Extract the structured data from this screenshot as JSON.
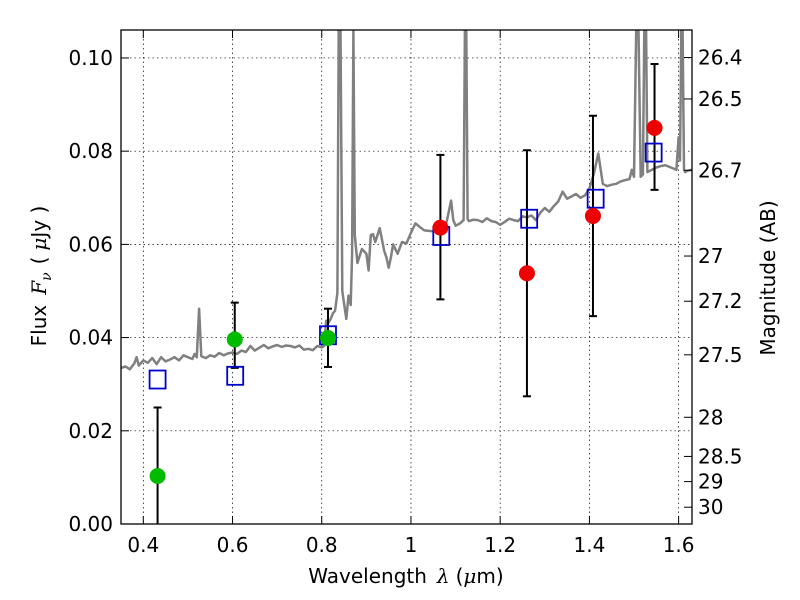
{
  "chart_data": {
    "type": "scatter",
    "title": "",
    "xlabel": "Wavelength",
    "xlabel_symbol": "λ",
    "xlabel_unit_open": "(",
    "xlabel_unit_mu": "μ",
    "xlabel_unit_rest": "m)",
    "ylabel": "Flux",
    "ylabel_symbol": "F",
    "ylabel_symbol_sub": "ν",
    "ylabel_unit_open": "(",
    "ylabel_unit_mu": "μ",
    "ylabel_unit_rest": "Jy )",
    "y2label": "Magnitude (AB)",
    "xlim": [
      0.35,
      1.63
    ],
    "ylim": [
      0.0,
      0.106
    ],
    "grid": true,
    "legend": "none",
    "x_ticks": [
      {
        "value": 0.4,
        "label": "0.4"
      },
      {
        "value": 0.6,
        "label": "0.6"
      },
      {
        "value": 0.8,
        "label": "0.8"
      },
      {
        "value": 1.0,
        "label": "1"
      },
      {
        "value": 1.2,
        "label": "1.2"
      },
      {
        "value": 1.4,
        "label": "1.4"
      },
      {
        "value": 1.6,
        "label": "1.6"
      }
    ],
    "y_ticks": [
      {
        "value": 0.0,
        "label": "0.00"
      },
      {
        "value": 0.02,
        "label": "0.02"
      },
      {
        "value": 0.04,
        "label": "0.04"
      },
      {
        "value": 0.06,
        "label": "0.06"
      },
      {
        "value": 0.08,
        "label": "0.08"
      },
      {
        "value": 0.1,
        "label": "0.10"
      }
    ],
    "y2_ticks": [
      {
        "flux": 0.1001,
        "label": "26.4"
      },
      {
        "flux": 0.0912,
        "label": "26.5"
      },
      {
        "flux": 0.0759,
        "label": "26.7"
      },
      {
        "flux": 0.0575,
        "label": "27"
      },
      {
        "flux": 0.0478,
        "label": "27.2"
      },
      {
        "flux": 0.0363,
        "label": "27.5"
      },
      {
        "flux": 0.0229,
        "label": "28"
      },
      {
        "flux": 0.0145,
        "label": "28.5"
      },
      {
        "flux": 0.0091,
        "label": "29"
      },
      {
        "flux": 0.0036,
        "label": "30"
      }
    ],
    "series": [
      {
        "kind": "spectrum",
        "color": "#808080",
        "points": [
          [
            0.35,
            0.0335
          ],
          [
            0.36,
            0.0338
          ],
          [
            0.37,
            0.0332
          ],
          [
            0.38,
            0.0345
          ],
          [
            0.385,
            0.0358
          ],
          [
            0.39,
            0.034
          ],
          [
            0.4,
            0.0351
          ],
          [
            0.41,
            0.0346
          ],
          [
            0.42,
            0.0356
          ],
          [
            0.43,
            0.0343
          ],
          [
            0.44,
            0.0358
          ],
          [
            0.45,
            0.0349
          ],
          [
            0.46,
            0.0353
          ],
          [
            0.47,
            0.0358
          ],
          [
            0.48,
            0.0351
          ],
          [
            0.49,
            0.0362
          ],
          [
            0.5,
            0.0358
          ],
          [
            0.51,
            0.0354
          ],
          [
            0.515,
            0.0365
          ],
          [
            0.52,
            0.0358
          ],
          [
            0.525,
            0.0462
          ],
          [
            0.53,
            0.036
          ],
          [
            0.54,
            0.0356
          ],
          [
            0.55,
            0.0362
          ],
          [
            0.56,
            0.0359
          ],
          [
            0.57,
            0.0367
          ],
          [
            0.58,
            0.0362
          ],
          [
            0.59,
            0.0366
          ],
          [
            0.6,
            0.0368
          ],
          [
            0.61,
            0.0365
          ],
          [
            0.62,
            0.0372
          ],
          [
            0.63,
            0.0369
          ],
          [
            0.64,
            0.0382
          ],
          [
            0.65,
            0.0372
          ],
          [
            0.66,
            0.0378
          ],
          [
            0.67,
            0.0384
          ],
          [
            0.68,
            0.0377
          ],
          [
            0.69,
            0.0381
          ],
          [
            0.7,
            0.0384
          ],
          [
            0.71,
            0.038
          ],
          [
            0.72,
            0.0383
          ],
          [
            0.73,
            0.0382
          ],
          [
            0.74,
            0.0379
          ],
          [
            0.75,
            0.0383
          ],
          [
            0.76,
            0.0374
          ],
          [
            0.77,
            0.0376
          ],
          [
            0.78,
            0.0373
          ],
          [
            0.79,
            0.0382
          ],
          [
            0.8,
            0.0379
          ],
          [
            0.805,
            0.0382
          ],
          [
            0.81,
            0.0436
          ],
          [
            0.815,
            0.0432
          ],
          [
            0.82,
            0.044
          ],
          [
            0.825,
            0.0452
          ],
          [
            0.83,
            0.0458
          ],
          [
            0.835,
            0.0496
          ],
          [
            0.838,
            0.106
          ],
          [
            0.842,
            0.106
          ],
          [
            0.846,
            0.05
          ],
          [
            0.85,
            0.0474
          ],
          [
            0.855,
            0.044
          ],
          [
            0.86,
            0.049
          ],
          [
            0.865,
            0.047
          ],
          [
            0.868,
            0.058
          ],
          [
            0.871,
            0.106
          ],
          [
            0.874,
            0.062
          ],
          [
            0.877,
            0.059
          ],
          [
            0.88,
            0.056
          ],
          [
            0.89,
            0.059
          ],
          [
            0.9,
            0.058
          ],
          [
            0.905,
            0.0544
          ],
          [
            0.91,
            0.062
          ],
          [
            0.915,
            0.0622
          ],
          [
            0.92,
            0.0605
          ],
          [
            0.93,
            0.0635
          ],
          [
            0.94,
            0.0586
          ],
          [
            0.945,
            0.0572
          ],
          [
            0.95,
            0.055
          ],
          [
            0.955,
            0.0572
          ],
          [
            0.96,
            0.06
          ],
          [
            0.965,
            0.059
          ],
          [
            0.97,
            0.058
          ],
          [
            0.98,
            0.0605
          ],
          [
            0.99,
            0.0602
          ],
          [
            1.0,
            0.0625
          ],
          [
            1.01,
            0.0645
          ],
          [
            1.02,
            0.0637
          ],
          [
            1.03,
            0.063
          ],
          [
            1.04,
            0.0629
          ],
          [
            1.05,
            0.0628
          ],
          [
            1.06,
            0.064
          ],
          [
            1.065,
            0.0625
          ],
          [
            1.07,
            0.0632
          ],
          [
            1.08,
            0.0648
          ],
          [
            1.09,
            0.0694
          ],
          [
            1.095,
            0.0652
          ],
          [
            1.1,
            0.064
          ],
          [
            1.11,
            0.0645
          ],
          [
            1.118,
            0.0652
          ],
          [
            1.121,
            0.106
          ],
          [
            1.124,
            0.106
          ],
          [
            1.127,
            0.0654
          ],
          [
            1.13,
            0.065
          ],
          [
            1.14,
            0.0653
          ],
          [
            1.15,
            0.0652
          ],
          [
            1.16,
            0.0648
          ],
          [
            1.17,
            0.0656
          ],
          [
            1.18,
            0.065
          ],
          [
            1.19,
            0.0648
          ],
          [
            1.2,
            0.0642
          ],
          [
            1.21,
            0.0648
          ],
          [
            1.22,
            0.0655
          ],
          [
            1.23,
            0.0652
          ],
          [
            1.24,
            0.065
          ],
          [
            1.25,
            0.066
          ],
          [
            1.26,
            0.0658
          ],
          [
            1.27,
            0.0662
          ],
          [
            1.28,
            0.0652
          ],
          [
            1.29,
            0.0668
          ],
          [
            1.3,
            0.0678
          ],
          [
            1.31,
            0.067
          ],
          [
            1.32,
            0.0682
          ],
          [
            1.33,
            0.0692
          ],
          [
            1.34,
            0.0713
          ],
          [
            1.35,
            0.0698
          ],
          [
            1.36,
            0.0703
          ],
          [
            1.37,
            0.0708
          ],
          [
            1.38,
            0.07
          ],
          [
            1.39,
            0.0705
          ],
          [
            1.4,
            0.072
          ],
          [
            1.41,
            0.0752
          ],
          [
            1.42,
            0.0795
          ],
          [
            1.43,
            0.073
          ],
          [
            1.44,
            0.0725
          ],
          [
            1.45,
            0.0728
          ],
          [
            1.46,
            0.073
          ],
          [
            1.47,
            0.0735
          ],
          [
            1.48,
            0.0738
          ],
          [
            1.49,
            0.074
          ],
          [
            1.495,
            0.076
          ],
          [
            1.5,
            0.0745
          ],
          [
            1.505,
            0.106
          ],
          [
            1.51,
            0.106
          ],
          [
            1.515,
            0.0745
          ],
          [
            1.52,
            0.075
          ],
          [
            1.523,
            0.106
          ],
          [
            1.527,
            0.106
          ],
          [
            1.53,
            0.0755
          ],
          [
            1.54,
            0.076
          ],
          [
            1.55,
            0.0765
          ],
          [
            1.56,
            0.0768
          ],
          [
            1.57,
            0.077
          ],
          [
            1.58,
            0.0766
          ],
          [
            1.59,
            0.0762
          ],
          [
            1.595,
            0.076
          ],
          [
            1.6,
            0.083
          ],
          [
            1.603,
            0.078
          ],
          [
            1.606,
            0.106
          ],
          [
            1.609,
            0.106
          ],
          [
            1.612,
            0.076
          ],
          [
            1.615,
            0.0755
          ],
          [
            1.62,
            0.0758
          ],
          [
            1.63,
            0.076
          ]
        ]
      },
      {
        "kind": "model-photometry",
        "marker": "square",
        "color": "#0000cc",
        "points": [
          {
            "x": 0.432,
            "y": 0.031
          },
          {
            "x": 0.606,
            "y": 0.0318
          },
          {
            "x": 0.814,
            "y": 0.0405
          },
          {
            "x": 1.068,
            "y": 0.0618
          },
          {
            "x": 1.265,
            "y": 0.0655
          },
          {
            "x": 1.414,
            "y": 0.0698
          },
          {
            "x": 1.544,
            "y": 0.0797
          }
        ]
      },
      {
        "kind": "optical-detections",
        "marker": "circle",
        "color": "#00bb00",
        "points": [
          {
            "x": 0.432,
            "y": 0.0103,
            "yerr_low": 0.0,
            "yerr_high": 0.025
          },
          {
            "x": 0.605,
            "y": 0.0396,
            "yerr_low": 0.0335,
            "yerr_high": 0.0475
          },
          {
            "x": 0.814,
            "y": 0.0399,
            "yerr_low": 0.0337,
            "yerr_high": 0.0462
          }
        ]
      },
      {
        "kind": "nir-detections",
        "marker": "circle",
        "color": "#ee0000",
        "points": [
          {
            "x": 1.066,
            "y": 0.0636,
            "yerr_low": 0.0482,
            "yerr_high": 0.0792
          },
          {
            "x": 1.26,
            "y": 0.0538,
            "yerr_low": 0.0274,
            "yerr_high": 0.0802
          },
          {
            "x": 1.408,
            "y": 0.0661,
            "yerr_low": 0.0446,
            "yerr_high": 0.0876
          },
          {
            "x": 1.546,
            "y": 0.085,
            "yerr_low": 0.0717,
            "yerr_high": 0.0987
          }
        ]
      }
    ]
  }
}
